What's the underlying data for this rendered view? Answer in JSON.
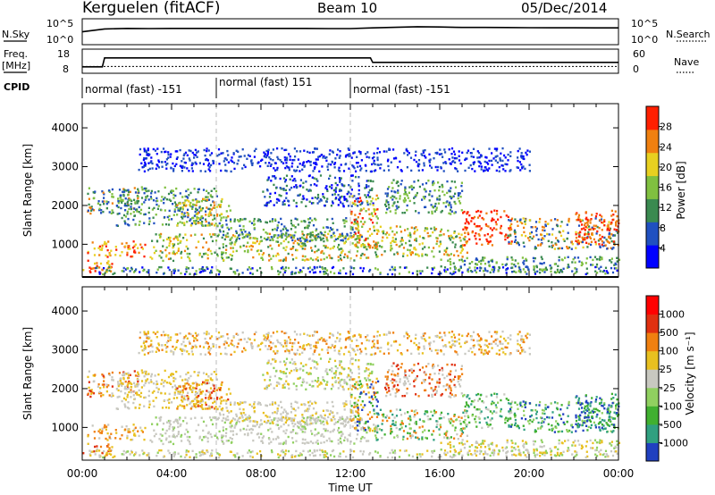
{
  "header": {
    "station": "Kerguelen (fitACF)",
    "beam": "Beam 10",
    "date": "05/Dec/2014"
  },
  "chart_data": [
    {
      "type": "line",
      "panel": "noise",
      "left_label": "N.Sky",
      "right_label": "N.Search",
      "left_ticks": [
        "10^5",
        "10^0"
      ],
      "right_ticks": [
        "10^5",
        "10^0"
      ],
      "x": [
        0,
        1,
        2,
        3,
        4,
        5,
        6,
        7,
        8,
        9,
        10,
        11,
        12,
        13,
        14,
        15,
        16,
        17,
        18,
        19,
        20,
        21,
        22,
        23,
        24
      ],
      "series": [
        {
          "values": [
            300,
            1200,
            1500,
            1400,
            1500,
            1500,
            1500,
            1500,
            1500,
            1500,
            1500,
            1400,
            1400,
            2000,
            2600,
            3500,
            3000,
            2500,
            2400,
            2300,
            2200,
            2100,
            2100,
            2000,
            2000
          ]
        }
      ],
      "ylim": [
        1,
        100000
      ],
      "scale": "log"
    },
    {
      "type": "line",
      "panel": "frequency",
      "left_label": "Freq.",
      "left_unit": "[MHz]",
      "right_label": "Nave",
      "left_ticks": [
        "18",
        "8"
      ],
      "right_ticks": [
        "60",
        "0"
      ],
      "x": [
        0,
        0.9,
        1.0,
        12.9,
        13.0,
        24
      ],
      "series": [
        {
          "values": [
            10.5,
            10.5,
            14.5,
            14.5,
            12.5,
            12.5
          ]
        }
      ],
      "nave_level": 16,
      "ylim": [
        8,
        18
      ]
    },
    {
      "type": "table",
      "panel": "cpid",
      "label": "CPID",
      "segments": [
        {
          "start": 0,
          "end": 6,
          "text": "normal (fast) -151"
        },
        {
          "start": 6,
          "end": 12,
          "text": "normal (fast) 151"
        },
        {
          "start": 12,
          "end": 24,
          "text": "normal (fast) -151"
        }
      ]
    },
    {
      "type": "heatmap",
      "panel": "power",
      "ylabel": "Slant Range [km]",
      "colorbar_label": "Power [dB]",
      "colorbar_ticks": [
        "28",
        "24",
        "20",
        "16",
        "12",
        "8",
        "4"
      ],
      "colors": [
        "#0000ff",
        "#2050c0",
        "#3a8a50",
        "#80c040",
        "#e8d020",
        "#f08010",
        "#ff2000"
      ],
      "yticks": [
        1000,
        2000,
        3000,
        4000
      ],
      "ylim": [
        180,
        4600
      ],
      "xlim": [
        0,
        24
      ]
    },
    {
      "type": "heatmap",
      "panel": "velocity",
      "ylabel": "Slant Range [km]",
      "colorbar_label": "Velocity [m s⁻¹]",
      "colorbar_ticks": [
        "1000",
        "500",
        "100",
        "25",
        "-25",
        "-100",
        "-500",
        "-1000"
      ],
      "colors": [
        "#2040c0",
        "#30a080",
        "#40b030",
        "#90d060",
        "#c8c8c0",
        "#e8c020",
        "#f08010",
        "#e03010",
        "#ff0000"
      ],
      "yticks": [
        1000,
        2000,
        3000,
        4000
      ],
      "ylim": [
        180,
        4600
      ],
      "xlim": [
        0,
        24
      ]
    }
  ],
  "axis": {
    "xticks": [
      "00:00",
      "04:00",
      "08:00",
      "12:00",
      "16:00",
      "20:00",
      "00:00"
    ],
    "xtick_values": [
      0,
      4,
      8,
      12,
      16,
      20,
      24
    ],
    "xlabel": "Time UT"
  }
}
